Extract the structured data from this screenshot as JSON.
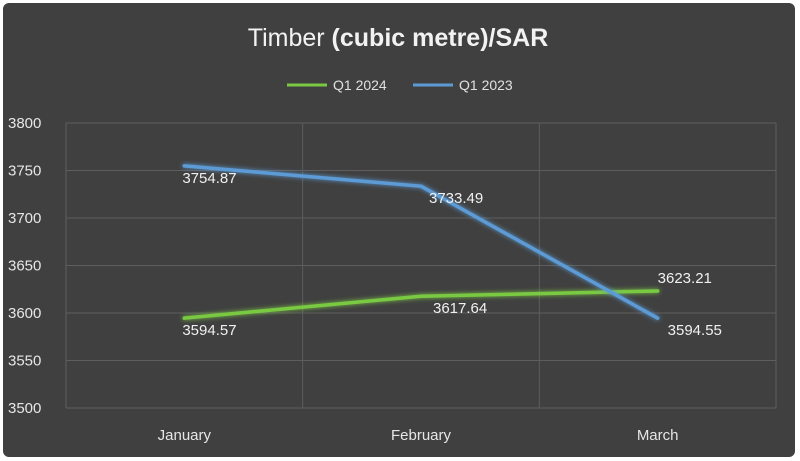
{
  "chart_data": {
    "type": "line",
    "title": "Timber (cubic metre)/SAR",
    "title_parts": {
      "plain": "Timber ",
      "bold": "(cubic metre)/SAR"
    },
    "categories": [
      "January",
      "February",
      "March"
    ],
    "y_ticks": [
      "3500",
      "3550",
      "3600",
      "3650",
      "3700",
      "3750",
      "3800"
    ],
    "ylim": [
      3500,
      3800
    ],
    "grid": true,
    "legend_position": "top",
    "series": [
      {
        "name": "Q1 2024",
        "color": "#7ac943",
        "values": [
          3594.57,
          3617.64,
          3623.21
        ],
        "labels": [
          "3594.57",
          "3617.64",
          "3623.21"
        ]
      },
      {
        "name": "Q1 2023",
        "color": "#5b9bd5",
        "values": [
          3754.87,
          3733.49,
          3594.55
        ],
        "labels": [
          "3754.87",
          "3733.49",
          "3594.55"
        ]
      }
    ]
  }
}
